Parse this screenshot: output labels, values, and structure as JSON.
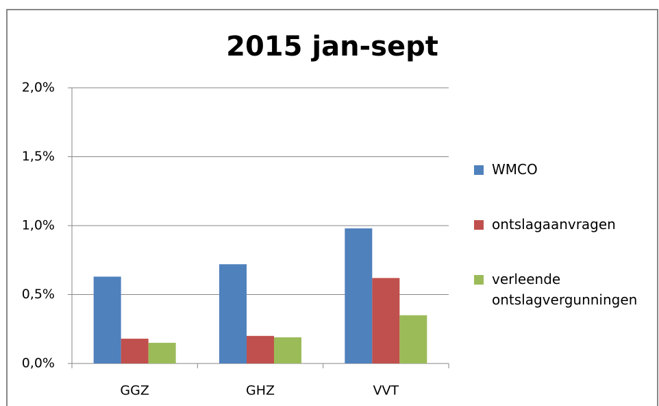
{
  "chart_data": {
    "type": "bar",
    "title": "2015 jan-sept",
    "categories": [
      "GGZ",
      "GHZ",
      "VVT"
    ],
    "series": [
      {
        "name": "WMCO",
        "color": "#4f81bd",
        "values": [
          0.63,
          0.72,
          0.98
        ]
      },
      {
        "name": "ontslagaanvragen",
        "color": "#c0504d",
        "values": [
          0.18,
          0.2,
          0.62
        ]
      },
      {
        "name": "verleende ontslagvergunningen",
        "color": "#9bbb59",
        "values": [
          0.15,
          0.19,
          0.35
        ]
      }
    ],
    "ylim": [
      0,
      2
    ],
    "yticks": [
      {
        "value": 0,
        "label": "0,0%"
      },
      {
        "value": 0.5,
        "label": "0,5%"
      },
      {
        "value": 1,
        "label": "1,0%"
      },
      {
        "value": 1.5,
        "label": "1,5%"
      },
      {
        "value": 2,
        "label": "2,0%"
      }
    ],
    "grid": true,
    "legend": "right"
  }
}
